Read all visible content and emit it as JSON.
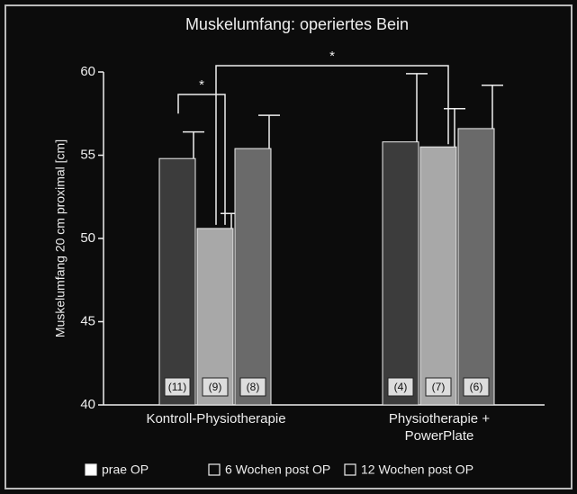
{
  "chart_data": {
    "type": "bar",
    "title": "Muskelumfang: operiertes Bein",
    "y_label": "Muskelumfang 20 cm proximal  [cm]",
    "categories": [
      "Kontroll-Physiotherapie",
      "Physiotherapie + PowerPlate"
    ],
    "series": [
      {
        "name": "prae OP",
        "color": "#3c3c3c",
        "values": [
          54.8,
          55.8
        ],
        "errors": [
          1.6,
          4.1
        ],
        "n_labels": [
          "(11)",
          "(4)"
        ]
      },
      {
        "name": "6 Wochen post OP",
        "color": "#a8a8a8",
        "values": [
          50.6,
          55.5
        ],
        "errors": [
          0.9,
          2.3
        ],
        "n_labels": [
          "(9)",
          "(7)"
        ]
      },
      {
        "name": "12 Wochen post OP",
        "color": "#6a6a6a",
        "values": [
          55.4,
          56.6
        ],
        "errors": [
          2.0,
          2.6
        ],
        "n_labels": [
          "(8)",
          "(6)"
        ]
      }
    ],
    "annotations": [
      "*",
      "*"
    ],
    "ylim": [
      40,
      60
    ],
    "yticks": [
      40,
      45,
      50,
      55,
      60
    ],
    "legend": "bottom"
  }
}
